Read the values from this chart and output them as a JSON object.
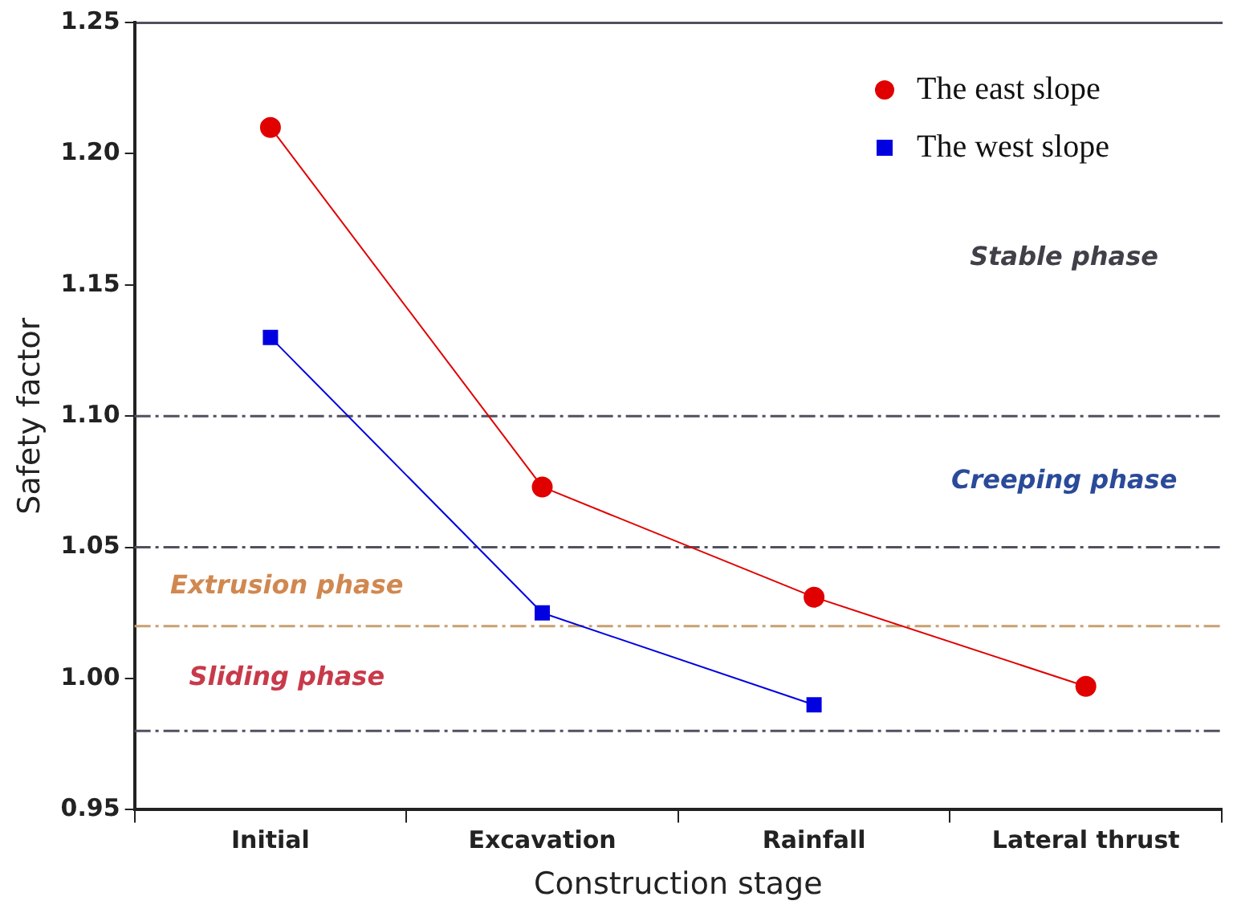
{
  "chart_data": {
    "type": "line",
    "xlabel": "Construction stage",
    "ylabel": "Safety factor",
    "categories": [
      "Initial",
      "Excavation",
      "Rainfall",
      "Lateral thrust"
    ],
    "series": [
      {
        "name": "The east slope",
        "color": "#e00000",
        "marker": "circle",
        "values": [
          1.21,
          1.073,
          1.031,
          0.997
        ]
      },
      {
        "name": "The west slope",
        "color": "#0000e0",
        "marker": "square",
        "values": [
          1.13,
          1.025,
          0.99,
          null
        ]
      }
    ],
    "ylim": [
      0.95,
      1.25
    ],
    "yticks": [
      0.95,
      {
        "value": 1.0,
        "label": "1.00"
      },
      1.05,
      {
        "value": 1.1,
        "label": "1.10"
      },
      1.15,
      {
        "value": 1.2,
        "label": "1.20"
      },
      1.25
    ],
    "ref_lines": [
      {
        "axis": "y",
        "value": 0.98,
        "color": "#505060",
        "line_style": "dashed"
      },
      {
        "axis": "y",
        "value": 1.02,
        "color": "#c8a070",
        "line_style": "dashed"
      },
      {
        "axis": "y",
        "value": 1.05,
        "color": "#505060",
        "line_style": "dashed"
      },
      {
        "axis": "y",
        "value": 1.1,
        "color": "#505060",
        "line_style": "dashed"
      }
    ],
    "annotations": [
      "Stable phase",
      "Creeping phase",
      "Extrusion phase",
      "Sliding phase"
    ],
    "legend": "top right",
    "grid": false
  }
}
